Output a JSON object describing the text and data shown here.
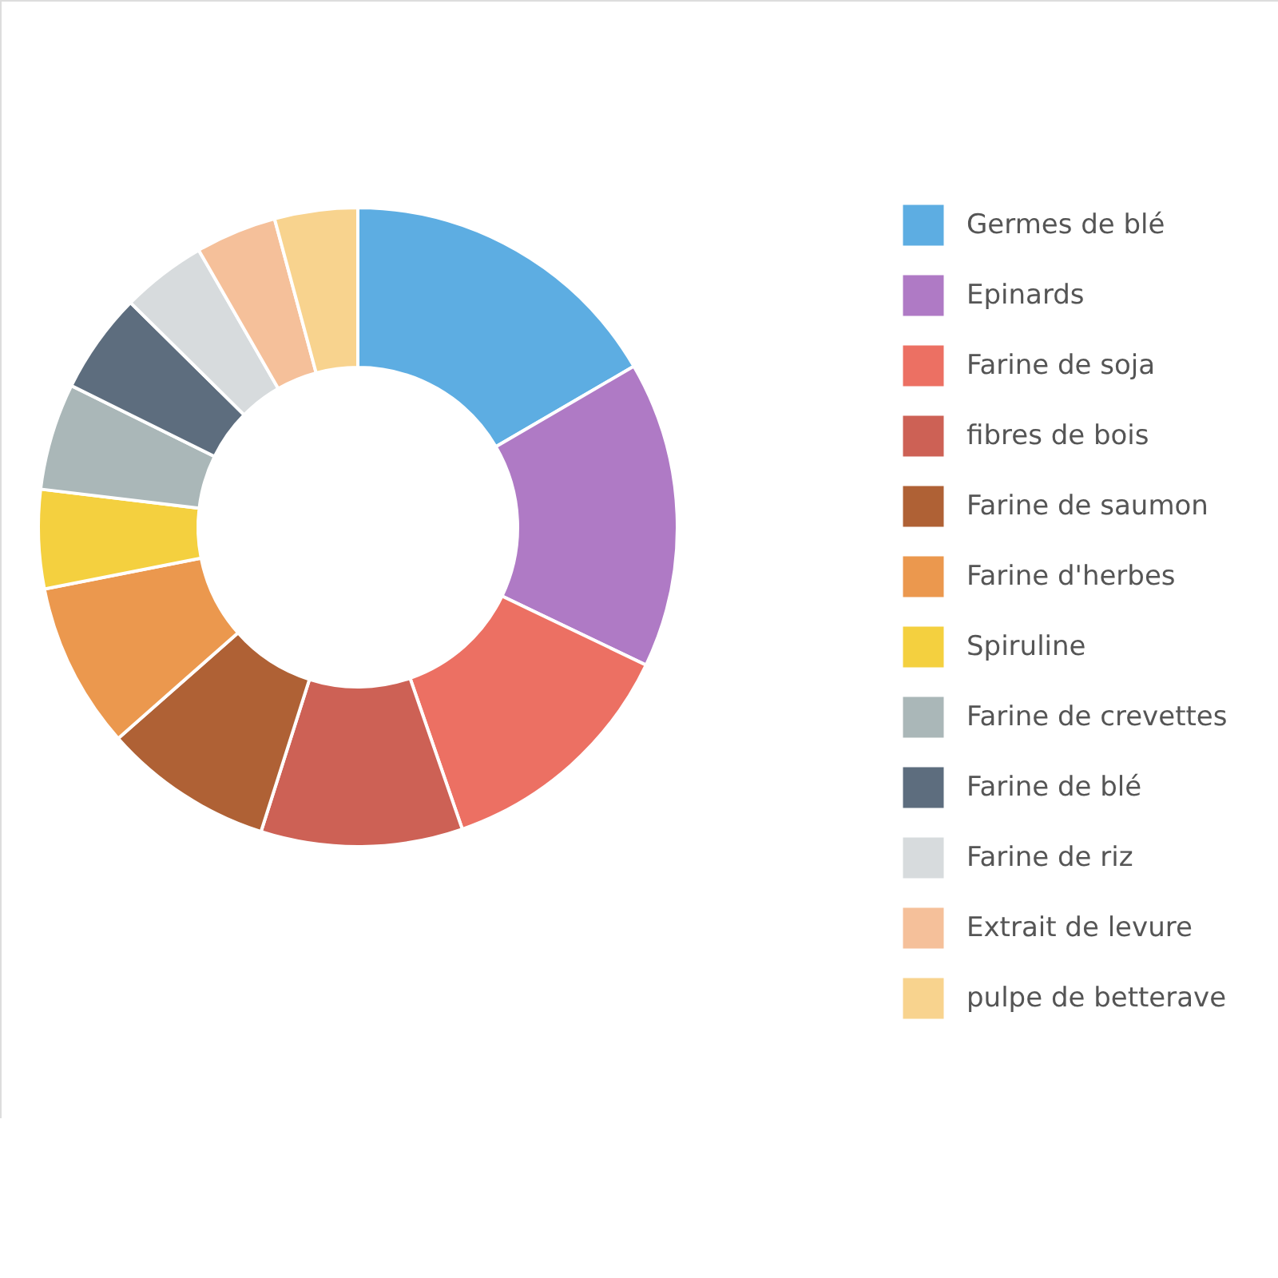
{
  "chart_data": {
    "type": "donut",
    "categories": [
      "Germes de blé",
      "Epinards",
      "Farine de soja",
      "fibres de bois",
      "Farine de saumon",
      "Farine d'herbes",
      "Spiruline",
      "Farine de crevettes",
      "Farine de blé",
      "Farine de riz",
      "Extrait de levure",
      "pulpe de betterave"
    ],
    "values": [
      16.6,
      15.5,
      12.6,
      10.2,
      8.6,
      8.4,
      5.0,
      5.4,
      5.1,
      4.3,
      4.1,
      4.2
    ],
    "colors": [
      "#5dade2",
      "#af7ac5",
      "#ec7063",
      "#cd6155",
      "#af6135",
      "#eb984e",
      "#f4d03f",
      "#aab7b8",
      "#5d6d7e",
      "#d7dbdd",
      "#f5c09a",
      "#f8d38e"
    ],
    "legend": "right"
  }
}
